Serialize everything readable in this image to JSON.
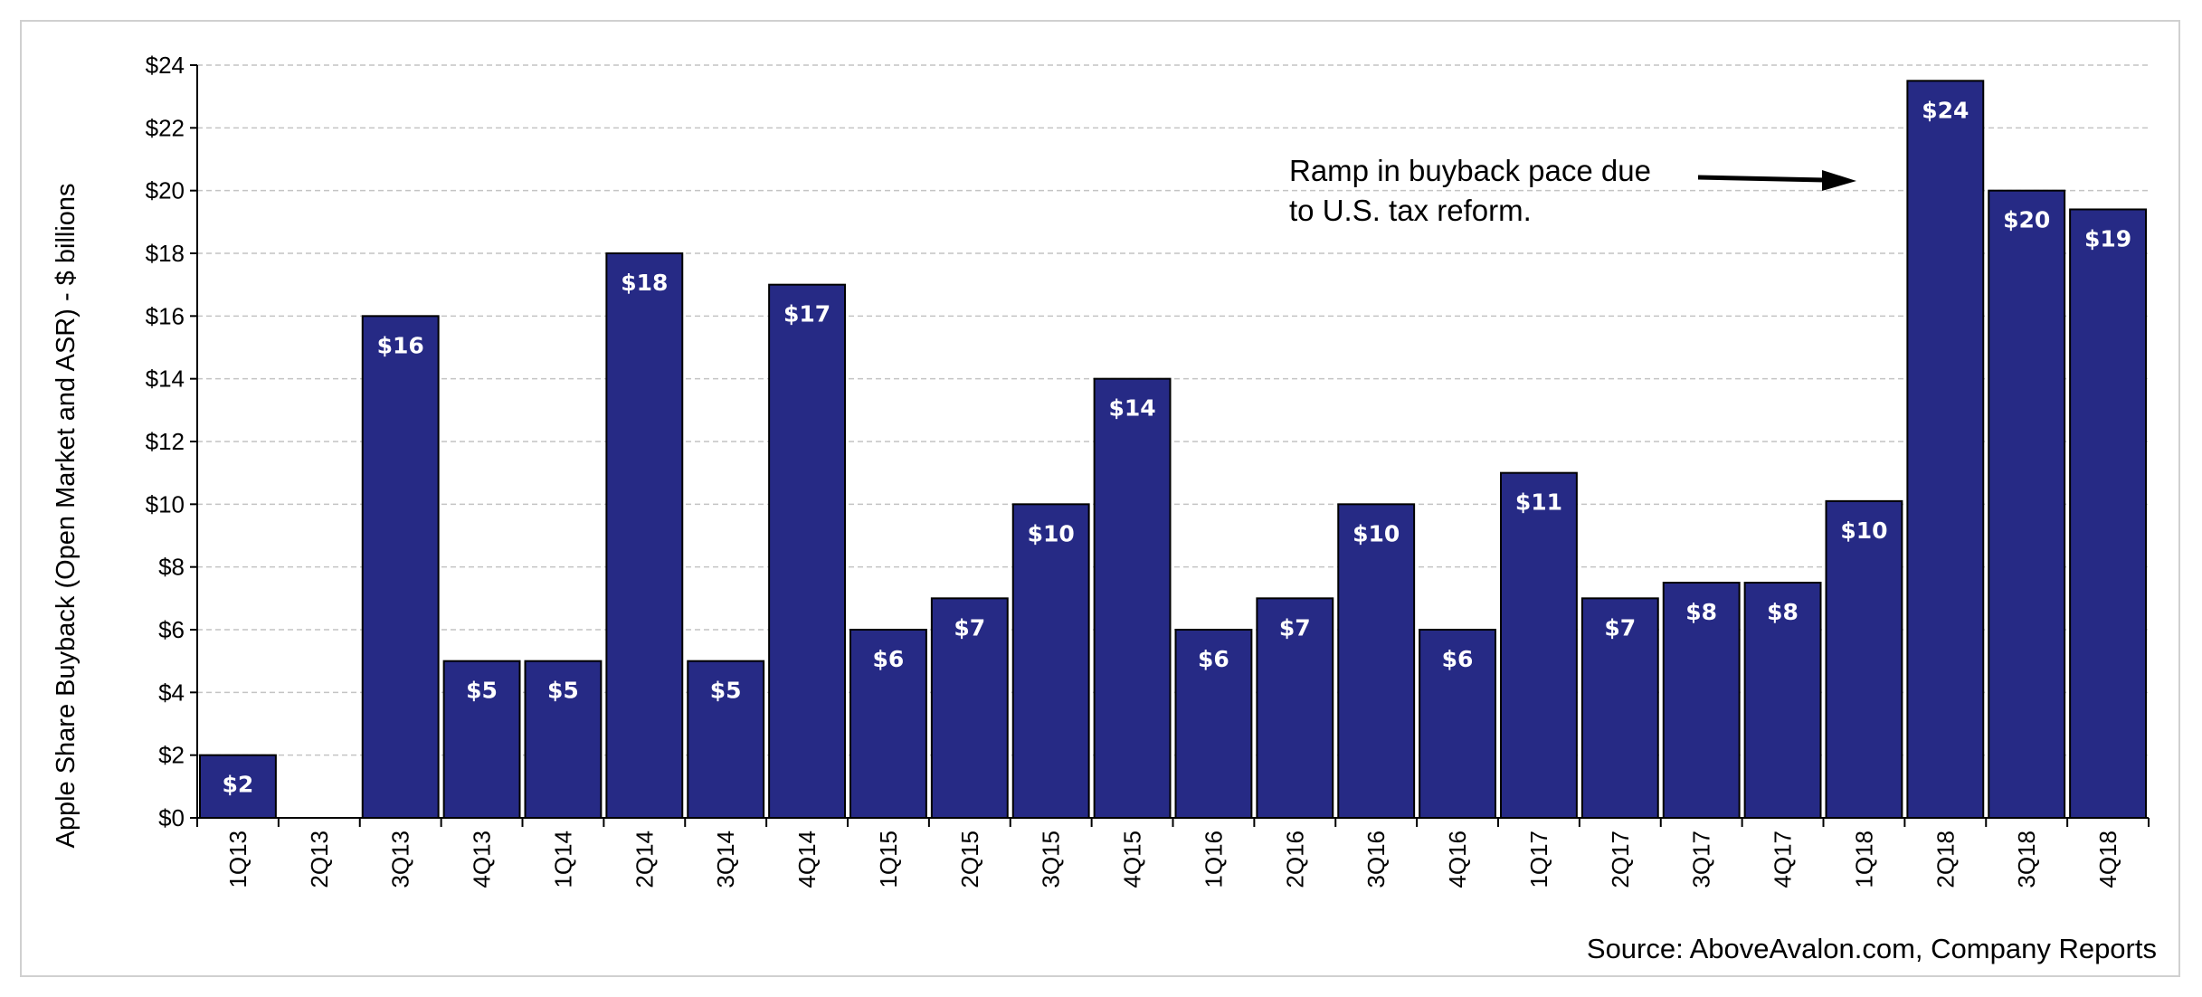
{
  "chart_data": {
    "type": "bar",
    "title": "",
    "xlabel": "",
    "ylabel": "Apple Share Buyback (Open Market and ASR) - $ billions",
    "ylim": [
      0,
      24
    ],
    "ytick_step": 2,
    "ytick_prefix": "$",
    "grid": true,
    "bar_color": "#262a85",
    "categories": [
      "1Q13",
      "2Q13",
      "3Q13",
      "4Q13",
      "1Q14",
      "2Q14",
      "3Q14",
      "4Q14",
      "1Q15",
      "2Q15",
      "3Q15",
      "4Q15",
      "1Q16",
      "2Q16",
      "3Q16",
      "4Q16",
      "1Q17",
      "2Q17",
      "3Q17",
      "4Q17",
      "1Q18",
      "2Q18",
      "3Q18",
      "4Q18"
    ],
    "values": [
      2,
      0,
      16,
      5,
      5,
      18,
      5,
      17,
      6,
      7,
      10,
      14,
      6,
      7,
      10,
      6,
      11,
      7,
      7.5,
      7.5,
      10.1,
      23.5,
      20,
      19.4
    ],
    "data_labels": [
      "$2",
      "",
      "$16",
      "$5",
      "$5",
      "$18",
      "$5",
      "$17",
      "$6",
      "$7",
      "$10",
      "$14",
      "$6",
      "$7",
      "$10",
      "$6",
      "$11",
      "$7",
      "$8",
      "$8",
      "$10",
      "$24",
      "$20",
      "$19"
    ],
    "annotation": {
      "lines": [
        "Ramp in buyback pace due",
        "to U.S. tax reform."
      ]
    },
    "source": "Source: AboveAvalon.com, Company Reports"
  }
}
